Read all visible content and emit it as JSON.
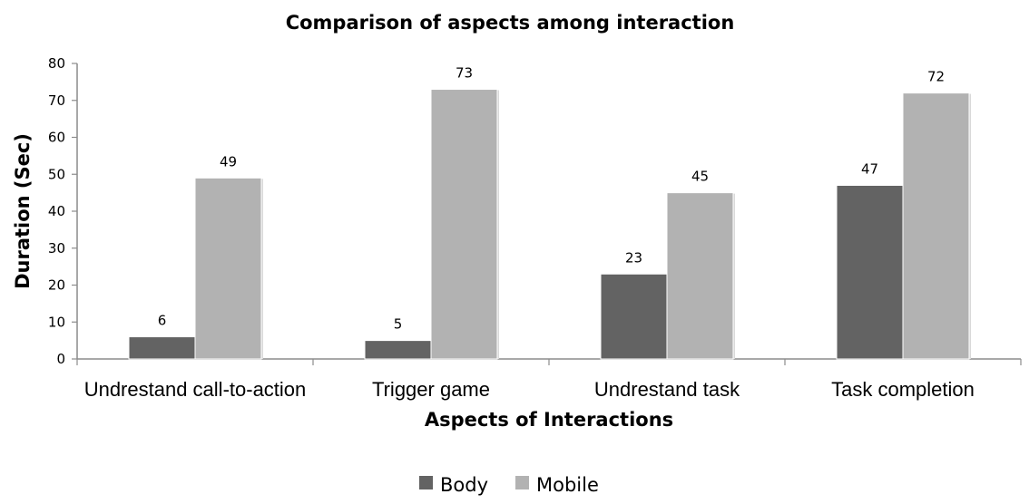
{
  "chart_data": {
    "type": "bar",
    "title": "Comparison of aspects among interaction",
    "xlabel": "Aspects of Interactions",
    "ylabel": "Duration (Sec)",
    "ylim": [
      0,
      80
    ],
    "yticks": [
      0,
      10,
      20,
      30,
      40,
      50,
      60,
      70,
      80
    ],
    "categories": [
      "Undrestand call-to-action",
      "Trigger game",
      "Undrestand task",
      "Task completion"
    ],
    "series": [
      {
        "name": "Body",
        "color": "#636363",
        "values": [
          6,
          5,
          23,
          47
        ]
      },
      {
        "name": "Mobile",
        "color": "#b2b2b2",
        "values": [
          49,
          73,
          45,
          72
        ]
      }
    ],
    "grid": false,
    "legend_position": "bottom"
  }
}
